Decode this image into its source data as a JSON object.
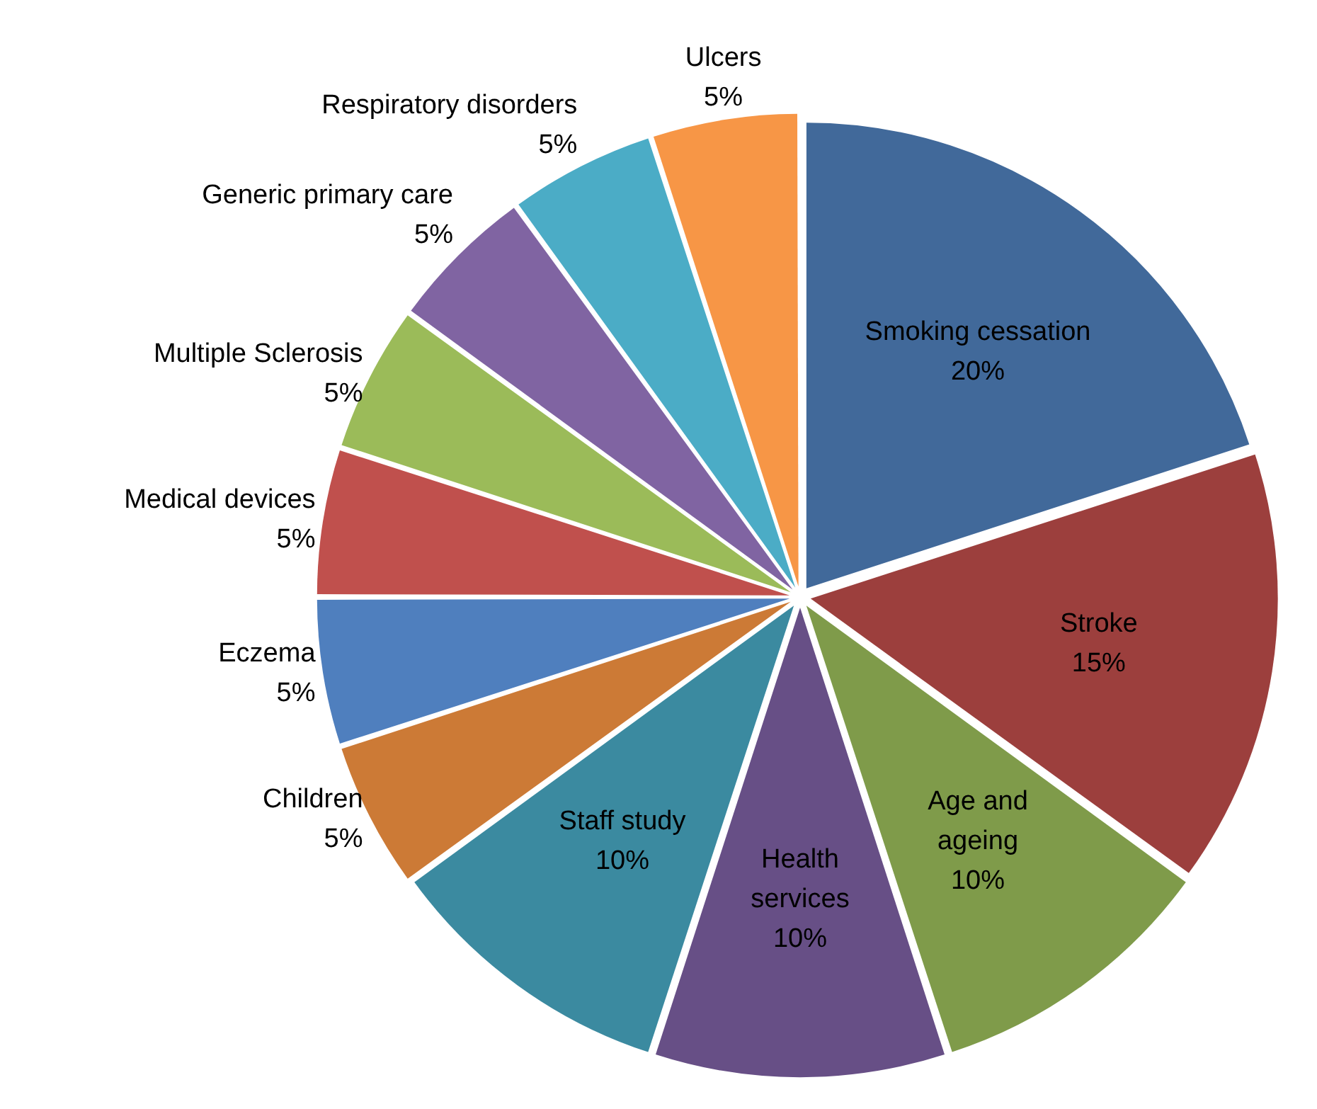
{
  "chart_data": {
    "type": "pie",
    "categories": [
      "Smoking cessation",
      "Stroke",
      "Age and ageing",
      "Health services",
      "Staff study",
      "Children",
      "Eczema",
      "Medical devices",
      "Multiple Sclerosis",
      "Generic primary care",
      "Respiratory disorders",
      "Ulcers"
    ],
    "values": [
      20,
      15,
      10,
      10,
      10,
      5,
      5,
      5,
      5,
      5,
      5,
      5
    ],
    "value_labels": [
      "20%",
      "15%",
      "10%",
      "10%",
      "10%",
      "5%",
      "5%",
      "5%",
      "5%",
      "5%",
      "5%",
      "5%"
    ],
    "colors": [
      "#41699a",
      "#9c3f3d",
      "#7f9b4a",
      "#674f86",
      "#3b8aa0",
      "#cc7a36",
      "#4f7fbe",
      "#c0504d",
      "#9bbb59",
      "#8064a2",
      "#4bacc6",
      "#f79646"
    ],
    "legend": false
  }
}
